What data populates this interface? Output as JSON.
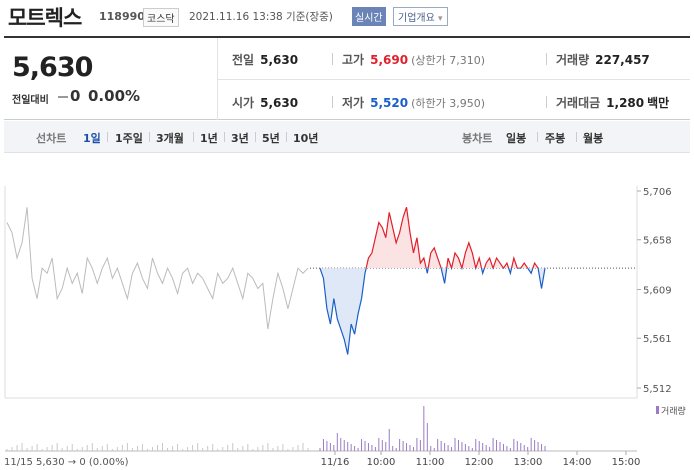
{
  "header": {
    "name": "모트렉스",
    "code": "118990",
    "market": "코스닥",
    "datetime": "2021.11.16 13:38 기준(장중)",
    "realtime": "실시간",
    "company_info": "기업개요",
    "company_info_arrow": "▾"
  },
  "summary": {
    "price": "5,630",
    "change_label": "전일대비",
    "change_value": "0",
    "change_pct": "0.00%",
    "prev_label": "전일",
    "prev_value": "5,630",
    "high_label": "고가",
    "high_value": "5,690",
    "upper_limit": "(상한가 7,310)",
    "volume_label": "거래량",
    "volume_value": "227,457",
    "open_label": "시가",
    "open_value": "5,630",
    "low_label": "저가",
    "low_value": "5,520",
    "lower_limit": "(하한가 3,950)",
    "amount_label": "거래대금",
    "amount_value": "1,280",
    "amount_unit": "백만"
  },
  "tabs": {
    "line_label": "선차트",
    "line_items": [
      "1일",
      "1주일",
      "3개월",
      "1년",
      "3년",
      "5년",
      "10년"
    ],
    "active": "1일",
    "candle_label": "봉차트",
    "candle_items": [
      "일봉",
      "주봉",
      "월봉"
    ]
  },
  "chart_data": {
    "type": "line",
    "title": "",
    "series": [
      {
        "name": "11/15",
        "color": "#bbbbbb",
        "values": [
          5675,
          5665,
          5640,
          5655,
          5690,
          5620,
          5600,
          5630,
          5625,
          5640,
          5600,
          5610,
          5630,
          5615,
          5625,
          5605,
          5640,
          5630,
          5615,
          5630,
          5640,
          5620,
          5630,
          5615,
          5600,
          5625,
          5635,
          5620,
          5610,
          5640,
          5625,
          5615,
          5630,
          5620,
          5605,
          5625,
          5630,
          5615,
          5625,
          5620,
          5610,
          5600,
          5625,
          5615,
          5620,
          5630,
          5615,
          5600,
          5625,
          5620,
          5610,
          5615,
          5570,
          5600,
          5625,
          5610,
          5590,
          5610,
          5630,
          5625,
          5630
        ]
      },
      {
        "name": "11/16",
        "color_up": "#e0202a",
        "color_down": "#1a5fc8",
        "values": [
          5630,
          5620,
          5590,
          5575,
          5600,
          5580,
          5570,
          5560,
          5545,
          5575,
          5565,
          5585,
          5600,
          5625,
          5640,
          5645,
          5660,
          5675,
          5670,
          5660,
          5685,
          5670,
          5655,
          5665,
          5680,
          5690,
          5665,
          5645,
          5660,
          5635,
          5640,
          5625,
          5645,
          5650,
          5640,
          5630,
          5615,
          5640,
          5630,
          5645,
          5640,
          5630,
          5645,
          5655,
          5645,
          5630,
          5640,
          5625,
          5635,
          5640,
          5630,
          5640,
          5635,
          5630,
          5635,
          5625,
          5640,
          5630,
          5630,
          5635,
          5630,
          5625,
          5635,
          5630,
          5610,
          5630
        ]
      }
    ],
    "prev_close": 5630,
    "y_ticks": [
      "5,706",
      "5,658",
      "5,609",
      "5,561",
      "5,512"
    ],
    "y_tick_values": [
      5706,
      5658,
      5609,
      5561,
      5512
    ],
    "x_ticks": [
      "11/16",
      "10:00",
      "11:00",
      "12:00",
      "13:00",
      "14:00",
      "15:00"
    ],
    "volume_label": "거래량",
    "bottom_left_text": "11/15  5,630 → 0 (0.00%)"
  }
}
